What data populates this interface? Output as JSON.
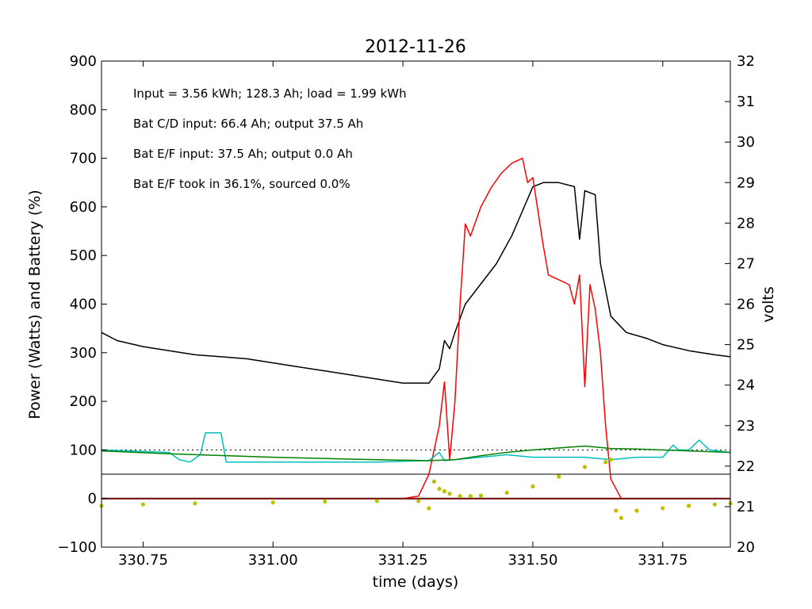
{
  "chart_data": {
    "type": "line",
    "title": "2012-11-26",
    "xlabel": "time (days)",
    "ylabel": "Power (Watts) and Battery (%)",
    "y2label": "volts",
    "xlim": [
      330.67,
      331.88
    ],
    "ylim": [
      -100,
      900
    ],
    "y2lim": [
      20,
      32
    ],
    "xticks": [
      "330.75",
      "331.00",
      "331.25",
      "331.50",
      "331.75"
    ],
    "xtick_values": [
      330.75,
      331.0,
      331.25,
      331.5,
      331.75
    ],
    "yticks": [
      "-100",
      "0",
      "100",
      "200",
      "300",
      "400",
      "500",
      "600",
      "700",
      "800",
      "900"
    ],
    "ytick_values": [
      -100,
      0,
      100,
      200,
      300,
      400,
      500,
      600,
      700,
      800,
      900
    ],
    "y2ticks": [
      "20",
      "21",
      "22",
      "23",
      "24",
      "25",
      "26",
      "27",
      "28",
      "29",
      "30",
      "31",
      "32"
    ],
    "y2tick_values": [
      20,
      21,
      22,
      23,
      24,
      25,
      26,
      27,
      28,
      29,
      30,
      31,
      32
    ],
    "annotations": [
      "Input = 3.56 kWh; 128.3 Ah; load = 1.99 kWh",
      "Bat C/D input: 66.4 Ah; output 37.5 Ah",
      "Bat E/F input: 37.5 Ah; output 0.0 Ah",
      "Bat E/F took in 36.1%, sourced 0.0%"
    ],
    "reference_lines": [
      {
        "y": 100,
        "color": "#000000",
        "style": "dotted"
      },
      {
        "y": 50,
        "color": "#000000",
        "style": "solid"
      },
      {
        "y": 0,
        "color": "#000000",
        "style": "solid-thick"
      }
    ],
    "series": [
      {
        "color": "#000000",
        "axis": "y2",
        "style": "line",
        "x": [
          330.67,
          330.7,
          330.75,
          330.8,
          330.85,
          330.9,
          330.95,
          331.0,
          331.05,
          331.1,
          331.15,
          331.2,
          331.25,
          331.3,
          331.32,
          331.33,
          331.34,
          331.35,
          331.37,
          331.4,
          331.43,
          331.46,
          331.48,
          331.5,
          331.52,
          331.55,
          331.58,
          331.59,
          331.6,
          331.62,
          331.63,
          331.65,
          331.68,
          331.72,
          331.75,
          331.8,
          331.85,
          331.88
        ],
        "y": [
          25.3,
          25.1,
          24.95,
          24.85,
          24.75,
          24.7,
          24.65,
          24.55,
          24.45,
          24.35,
          24.25,
          24.15,
          24.05,
          24.05,
          24.4,
          25.1,
          24.9,
          25.3,
          26.0,
          26.5,
          27.0,
          27.7,
          28.3,
          28.9,
          29.0,
          29.0,
          28.9,
          27.6,
          28.8,
          28.7,
          27.0,
          25.7,
          25.3,
          25.15,
          25.0,
          24.85,
          24.75,
          24.7
        ]
      },
      {
        "color": "#ff0000",
        "axis": "y",
        "style": "line",
        "x": [
          330.67,
          331.25,
          331.28,
          331.3,
          331.32,
          331.33,
          331.34,
          331.35,
          331.36,
          331.37,
          331.38,
          331.4,
          331.42,
          331.44,
          331.46,
          331.48,
          331.49,
          331.5,
          331.52,
          331.53,
          331.55,
          331.57,
          331.58,
          331.59,
          331.6,
          331.61,
          331.62,
          331.63,
          331.64,
          331.65,
          331.67,
          331.7,
          331.88
        ],
        "y": [
          0,
          0,
          5,
          50,
          150,
          240,
          80,
          200,
          400,
          565,
          540,
          600,
          640,
          670,
          690,
          700,
          650,
          660,
          520,
          460,
          450,
          440,
          400,
          460,
          230,
          440,
          390,
          300,
          150,
          40,
          0,
          0,
          0
        ]
      },
      {
        "color": "#00bfbf",
        "axis": "y",
        "style": "line",
        "x": [
          330.67,
          330.8,
          330.82,
          330.84,
          330.86,
          330.87,
          330.9,
          330.91,
          331.0,
          331.2,
          331.3,
          331.32,
          331.33,
          331.4,
          331.45,
          331.5,
          331.6,
          331.65,
          331.7,
          331.75,
          331.77,
          331.78,
          331.8,
          331.82,
          331.84,
          331.88
        ],
        "y": [
          100,
          95,
          80,
          75,
          90,
          135,
          135,
          75,
          75,
          75,
          78,
          95,
          78,
          85,
          90,
          85,
          85,
          80,
          85,
          85,
          110,
          100,
          100,
          120,
          100,
          95
        ]
      },
      {
        "color": "#008000",
        "axis": "y",
        "style": "line",
        "x": [
          330.67,
          330.8,
          331.0,
          331.2,
          331.3,
          331.35,
          331.4,
          331.45,
          331.5,
          331.6,
          331.65,
          331.7,
          331.8,
          331.88
        ],
        "y": [
          98,
          92,
          85,
          80,
          78,
          80,
          88,
          95,
          100,
          108,
          103,
          102,
          98,
          95
        ]
      },
      {
        "color": "#bfbf00",
        "axis": "y",
        "style": "dots",
        "x": [
          330.67,
          330.75,
          330.85,
          331.0,
          331.1,
          331.2,
          331.28,
          331.3,
          331.31,
          331.32,
          331.33,
          331.34,
          331.36,
          331.38,
          331.4,
          331.45,
          331.5,
          331.55,
          331.6,
          331.64,
          331.65,
          331.66,
          331.67,
          331.7,
          331.75,
          331.8,
          331.85,
          331.88
        ],
        "y": [
          -15,
          -12,
          -10,
          -8,
          -6,
          -5,
          -5,
          -20,
          35,
          20,
          15,
          10,
          5,
          5,
          6,
          12,
          25,
          45,
          65,
          75,
          80,
          -25,
          -40,
          -25,
          -20,
          -15,
          -12,
          -10
        ]
      },
      {
        "color": "#8b0000",
        "axis": "y",
        "style": "line",
        "x": [
          330.67,
          331.88
        ],
        "y": [
          0,
          0
        ]
      }
    ]
  }
}
